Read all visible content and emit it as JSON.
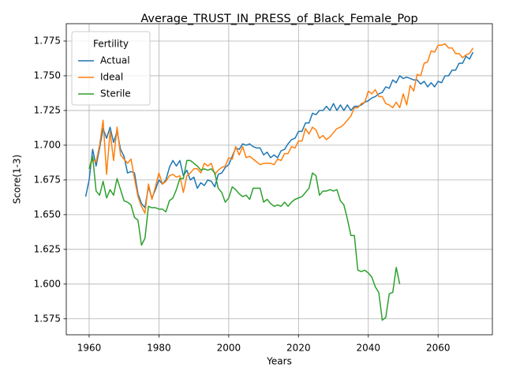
{
  "chart_data": {
    "type": "line",
    "title": "Average_TRUST_IN_PRESS_of_Black_Female_Pop",
    "x_label": "Years",
    "y_label": "Score(1-3)",
    "legend_title": "Fertility",
    "legend_loc": "upper left",
    "grid": true,
    "xlim": [
      1953.45,
      2075.55
    ],
    "ylim": [
      1.5635,
      1.7875
    ],
    "xticks": [
      1960,
      1980,
      2000,
      2020,
      2040,
      2060
    ],
    "yticks": [
      1.575,
      {
        "value": 1.6,
        "label": "1.600"
      },
      1.625,
      {
        "value": 1.65,
        "label": "1.650"
      },
      1.675,
      {
        "value": 1.7,
        "label": "1.700"
      },
      1.725,
      {
        "value": 1.75,
        "label": "1.750"
      },
      1.775
    ],
    "x": [
      1959,
      1960,
      1961,
      1962,
      1963,
      1964,
      1965,
      1966,
      1967,
      1968,
      1969,
      1970,
      1971,
      1972,
      1973,
      1974,
      1975,
      1976,
      1977,
      1978,
      1979,
      1980,
      1981,
      1982,
      1983,
      1984,
      1985,
      1986,
      1987,
      1988,
      1989,
      1990,
      1991,
      1992,
      1993,
      1994,
      1995,
      1996,
      1997,
      1998,
      1999,
      2000,
      2001,
      2002,
      2003,
      2004,
      2005,
      2006,
      2007,
      2008,
      2009,
      2010,
      2011,
      2012,
      2013,
      2014,
      2015,
      2016,
      2017,
      2018,
      2019,
      2020,
      2021,
      2022,
      2023,
      2024,
      2025,
      2026,
      2027,
      2028,
      2029,
      2030,
      2031,
      2032,
      2033,
      2034,
      2035,
      2036,
      2037,
      2038,
      2039,
      2040,
      2041,
      2042,
      2043,
      2044,
      2045,
      2046,
      2047,
      2048,
      2049,
      2050,
      2051,
      2052,
      2053,
      2054,
      2055,
      2056,
      2057,
      2058,
      2059,
      2060,
      2061,
      2062,
      2063,
      2064,
      2065,
      2066,
      2067,
      2068,
      2069,
      2070
    ],
    "series": [
      {
        "name": "Actual",
        "color": "#1f77b4",
        "values": [
          1.663,
          1.675,
          1.697,
          1.685,
          1.698,
          1.712,
          1.705,
          1.713,
          1.702,
          1.71,
          1.697,
          1.692,
          1.68,
          1.681,
          1.68,
          1.665,
          1.658,
          1.655,
          1.67,
          1.662,
          1.668,
          1.675,
          1.672,
          1.675,
          1.684,
          1.689,
          1.685,
          1.689,
          1.678,
          1.682,
          1.675,
          1.677,
          1.669,
          1.673,
          1.671,
          1.675,
          1.674,
          1.67,
          1.679,
          1.68,
          1.684,
          1.686,
          1.692,
          1.698,
          1.697,
          1.701,
          1.7,
          1.701,
          1.699,
          1.698,
          1.698,
          1.693,
          1.695,
          1.691,
          1.693,
          1.691,
          1.696,
          1.697,
          1.701,
          1.704,
          1.705,
          1.71,
          1.71,
          1.716,
          1.716,
          1.723,
          1.722,
          1.725,
          1.725,
          1.728,
          1.725,
          1.73,
          1.725,
          1.729,
          1.725,
          1.729,
          1.725,
          1.728,
          1.728,
          1.729,
          1.731,
          1.732,
          1.734,
          1.735,
          1.737,
          1.738,
          1.742,
          1.741,
          1.747,
          1.745,
          1.75,
          1.748,
          1.749,
          1.748,
          1.747,
          1.747,
          1.744,
          1.746,
          1.742,
          1.745,
          1.742,
          1.746,
          1.745,
          1.75,
          1.75,
          1.754,
          1.754,
          1.759,
          1.759,
          1.764,
          1.762,
          1.767
        ]
      },
      {
        "name": "Ideal",
        "color": "#ff7f0e",
        "values": [
          null,
          1.683,
          1.69,
          1.688,
          1.7,
          1.718,
          1.679,
          1.71,
          1.689,
          1.713,
          1.693,
          1.69,
          1.687,
          1.69,
          1.676,
          1.663,
          1.656,
          1.651,
          1.672,
          1.661,
          1.67,
          1.68,
          1.672,
          1.674,
          1.678,
          1.679,
          1.677,
          1.678,
          1.666,
          1.678,
          1.68,
          1.683,
          1.683,
          1.68,
          1.687,
          1.685,
          1.687,
          1.679,
          1.682,
          1.684,
          1.685,
          1.691,
          1.69,
          1.699,
          1.693,
          1.699,
          1.691,
          1.692,
          1.69,
          1.688,
          1.686,
          1.687,
          1.687,
          1.687,
          1.686,
          1.69,
          1.689,
          1.694,
          1.694,
          1.699,
          1.698,
          1.703,
          1.703,
          1.712,
          1.708,
          1.713,
          1.711,
          1.705,
          1.707,
          1.704,
          1.706,
          1.709,
          1.712,
          1.713,
          1.715,
          1.718,
          1.721,
          1.727,
          1.727,
          1.73,
          1.731,
          1.739,
          1.737,
          1.74,
          1.735,
          1.735,
          1.73,
          1.729,
          1.727,
          1.731,
          1.727,
          1.737,
          1.729,
          1.743,
          1.739,
          1.751,
          1.75,
          1.759,
          1.76,
          1.768,
          1.767,
          1.772,
          1.772,
          1.773,
          1.77,
          1.77,
          1.766,
          1.766,
          1.763,
          1.765,
          1.766,
          1.77
        ]
      },
      {
        "name": "Sterile",
        "color": "#2ca02c",
        "values": [
          null,
          1.683,
          1.692,
          1.667,
          1.664,
          1.674,
          1.662,
          1.668,
          1.664,
          1.676,
          1.668,
          1.66,
          1.659,
          1.657,
          1.648,
          1.646,
          1.628,
          1.633,
          1.656,
          1.655,
          1.655,
          1.654,
          1.654,
          1.652,
          1.66,
          1.662,
          1.668,
          1.676,
          1.676,
          1.689,
          1.689,
          1.687,
          1.685,
          1.682,
          1.683,
          1.682,
          1.683,
          1.68,
          1.669,
          1.666,
          1.659,
          1.662,
          1.67,
          1.668,
          1.665,
          1.663,
          1.664,
          1.661,
          1.669,
          1.669,
          1.669,
          1.659,
          1.661,
          1.658,
          1.656,
          1.657,
          1.656,
          1.659,
          1.656,
          1.659,
          1.661,
          1.662,
          1.663,
          1.666,
          1.669,
          1.68,
          1.678,
          1.664,
          1.667,
          1.667,
          1.668,
          1.667,
          1.668,
          1.66,
          1.657,
          1.647,
          1.635,
          1.635,
          1.61,
          1.609,
          1.61,
          1.608,
          1.605,
          1.598,
          1.594,
          1.574,
          1.576,
          1.593,
          1.594,
          1.612,
          1.6,
          null,
          null,
          null,
          null,
          null,
          null,
          null,
          null,
          null,
          null,
          null,
          null,
          null,
          null,
          null,
          null,
          null,
          null,
          null,
          null,
          null
        ]
      }
    ]
  }
}
